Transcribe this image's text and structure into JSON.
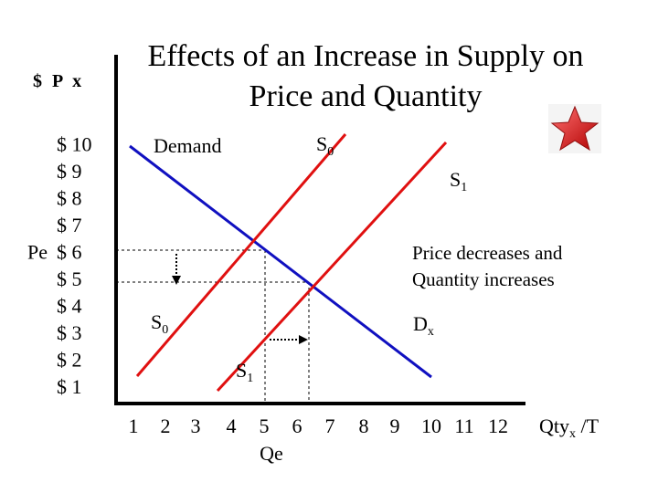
{
  "title_line1": "Effects of an Increase in Supply on",
  "title_line2": "Price and Quantity",
  "ylabel": "$ P x",
  "xlabel": "Qty",
  "xlabel_sub": "x",
  "xlabel_suffix": " /T",
  "colors": {
    "demand": "#1010c0",
    "supply": "#e01010",
    "guides": "#000000",
    "star": "#e02020"
  },
  "icons": {
    "corner": "red-star-icon"
  },
  "chart_data": {
    "type": "line",
    "title": "Effects of an Increase in Supply on Price and Quantity",
    "xlim": [
      0,
      12
    ],
    "ylim": [
      0,
      10
    ],
    "x_ticks": [
      "1",
      "2",
      "3",
      "4",
      "5",
      "6",
      "7",
      "8",
      "9",
      "10",
      "11",
      "12"
    ],
    "y_ticks": [
      "$ 10",
      "$ 9",
      "$ 8",
      "$ 7",
      "$ 6",
      "$ 5",
      "$ 4",
      "$ 3",
      "$ 2",
      "$ 1"
    ],
    "y_tick_values": [
      10,
      9,
      8,
      7,
      6,
      5,
      4,
      3,
      2,
      1
    ],
    "pe_label": "Pe",
    "pe_value": 6,
    "qe_label": "Qe",
    "qe_value": 5,
    "series": [
      {
        "name": "Demand",
        "end_label": "D",
        "end_sub": "x",
        "points": [
          [
            1,
            10
          ],
          [
            10,
            0.5
          ]
        ]
      },
      {
        "name": "S",
        "sub": "0",
        "low_label": "S",
        "low_sub": "0",
        "points": [
          [
            1,
            1
          ],
          [
            7,
            10
          ]
        ]
      },
      {
        "name": "S",
        "sub": "1",
        "low_label": "S",
        "low_sub": "1",
        "points": [
          [
            4.2,
            1
          ],
          [
            10,
            9.6
          ]
        ]
      }
    ],
    "equilibria": [
      {
        "x": 5.0,
        "y": 6.0
      },
      {
        "x": 6.2,
        "y": 4.8
      }
    ],
    "annotation_line1": "Price decreases and",
    "annotation_line2": "Quantity increases"
  }
}
